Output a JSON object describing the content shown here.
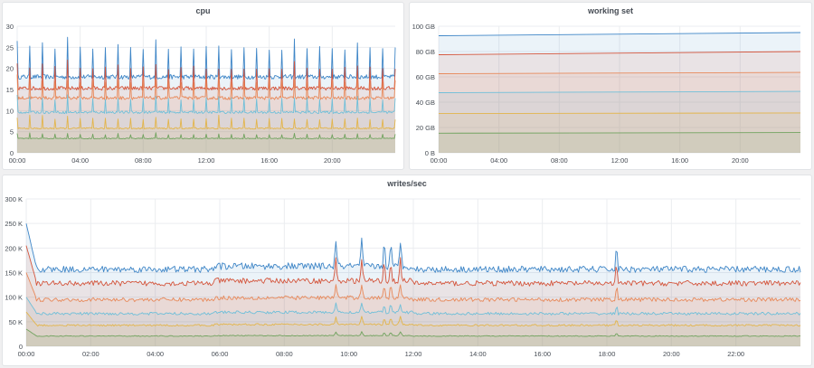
{
  "colors": {
    "blue": "#3f86c7",
    "red": "#d4553c",
    "orange": "#e8895a",
    "cyan": "#6fbfd9",
    "yellow": "#e3b54b",
    "green": "#71a35f",
    "grid": "#ebedf0",
    "tick": "#464c54"
  },
  "chart_data": [
    {
      "id": "cpu",
      "type": "area",
      "title": "cpu",
      "xlabel": "",
      "ylabel": "",
      "x_ticks": [
        "00:00",
        "04:00",
        "08:00",
        "12:00",
        "16:00",
        "20:00"
      ],
      "x_range_hours": [
        0,
        24
      ],
      "y_ticks": [
        "0",
        "5",
        "10",
        "15",
        "20",
        "25",
        "30"
      ],
      "ylim": [
        0,
        30
      ],
      "grid": true,
      "series": [
        {
          "color": "blue",
          "base": 18,
          "spike": 8.5
        },
        {
          "color": "red",
          "base": 15.3,
          "spike": 6
        },
        {
          "color": "orange",
          "base": 13,
          "spike": 5
        },
        {
          "color": "cyan",
          "base": 9.6,
          "spike": 4
        },
        {
          "color": "yellow",
          "base": 5.8,
          "spike": 2.8
        },
        {
          "color": "green",
          "base": 3.4,
          "spike": 1.2
        }
      ]
    },
    {
      "id": "working-set",
      "type": "area",
      "title": "working set",
      "xlabel": "",
      "ylabel": "",
      "x_ticks": [
        "00:00",
        "04:00",
        "08:00",
        "12:00",
        "16:00",
        "20:00"
      ],
      "x_range_hours": [
        0,
        24
      ],
      "y_ticks": [
        "0 B",
        "20 GB",
        "40 GB",
        "60 GB",
        "80 GB",
        "100 GB"
      ],
      "ylim": [
        0,
        100
      ],
      "grid": true,
      "series": [
        {
          "color": "blue",
          "start": 92.5,
          "end": 95
        },
        {
          "color": "red",
          "start": 77.5,
          "end": 80
        },
        {
          "color": "orange",
          "start": 62.5,
          "end": 63.5
        },
        {
          "color": "cyan",
          "start": 47.5,
          "end": 48.5
        },
        {
          "color": "yellow",
          "start": 31,
          "end": 31.5
        },
        {
          "color": "green",
          "start": 15.5,
          "end": 16
        }
      ]
    },
    {
      "id": "writes",
      "type": "area",
      "title": "writes/sec",
      "xlabel": "",
      "ylabel": "",
      "x_ticks": [
        "00:00",
        "02:00",
        "04:00",
        "06:00",
        "08:00",
        "10:00",
        "12:00",
        "14:00",
        "16:00",
        "18:00",
        "20:00",
        "22:00"
      ],
      "x_range_hours": [
        0,
        24
      ],
      "y_ticks": [
        "0",
        "50 K",
        "100 K",
        "150 K",
        "200 K",
        "250 K",
        "300 K"
      ],
      "ylim": [
        0,
        300
      ],
      "grid": true,
      "series": [
        {
          "color": "blue",
          "base": 165,
          "peak": 250
        },
        {
          "color": "red",
          "base": 135,
          "peak": 205
        },
        {
          "color": "orange",
          "base": 100,
          "peak": 150
        },
        {
          "color": "cyan",
          "base": 70,
          "peak": 100
        },
        {
          "color": "yellow",
          "base": 45,
          "peak": 70
        },
        {
          "color": "green",
          "base": 22,
          "peak": 35
        }
      ]
    }
  ]
}
